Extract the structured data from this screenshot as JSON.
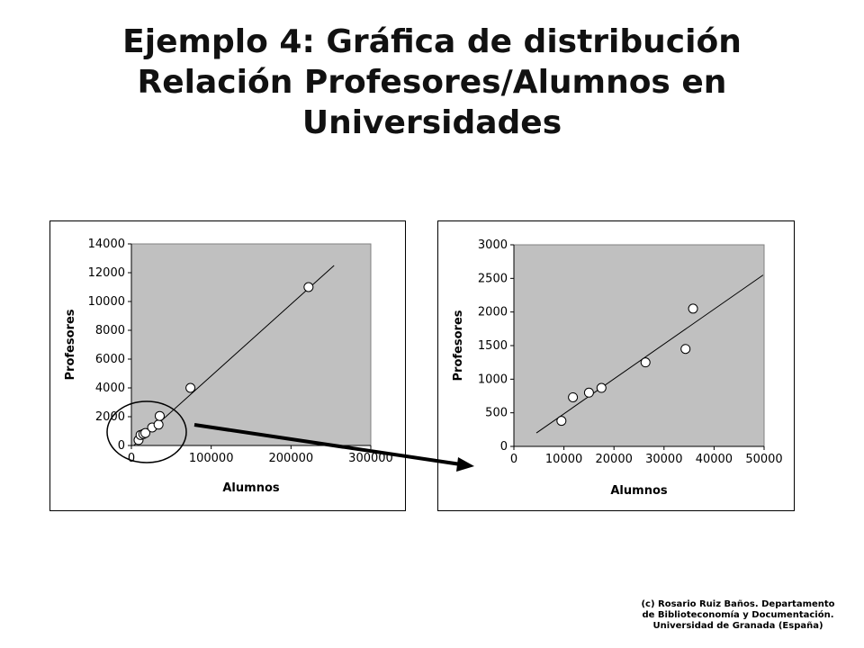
{
  "title_lines": [
    "Ejemplo 4: Gráfica de distribución",
    "Relación Profesores/Alumnos en",
    "Universidades"
  ],
  "credit_lines": [
    "(c) Rosario Ruiz Baños. Departamento",
    "de Biblioteconomía y Documentación.",
    "Universidad de Granada (España)"
  ],
  "colors": {
    "plot_area": "#c0c0c0",
    "points": "#ffffff",
    "lines": "#000000"
  },
  "chart_data": [
    {
      "type": "scatter",
      "xlabel": "Alumnos",
      "ylabel": "Profesores",
      "xlim": [
        0,
        300000
      ],
      "ylim": [
        0,
        14000
      ],
      "xticks": [
        0,
        100000,
        200000,
        300000
      ],
      "yticks": [
        0,
        2000,
        4000,
        6000,
        8000,
        10000,
        12000,
        14000
      ],
      "grid": false,
      "legend": "none",
      "points": [
        {
          "x": 9000,
          "y": 380
        },
        {
          "x": 11500,
          "y": 730
        },
        {
          "x": 15000,
          "y": 800
        },
        {
          "x": 17500,
          "y": 870
        },
        {
          "x": 26000,
          "y": 1250
        },
        {
          "x": 34000,
          "y": 1450
        },
        {
          "x": 35500,
          "y": 2050
        },
        {
          "x": 74000,
          "y": 4000
        },
        {
          "x": 222000,
          "y": 11000
        }
      ],
      "trendline": [
        {
          "x": 3000,
          "y": 0
        },
        {
          "x": 254000,
          "y": 12500
        }
      ]
    },
    {
      "type": "scatter",
      "xlabel": "Alumnos",
      "ylabel": "Profesores",
      "xlim": [
        0,
        50000
      ],
      "ylim": [
        0,
        3000
      ],
      "xticks": [
        0,
        10000,
        20000,
        30000,
        40000,
        50000
      ],
      "yticks": [
        0,
        500,
        1000,
        1500,
        2000,
        2500,
        3000
      ],
      "grid": false,
      "legend": "none",
      "points": [
        {
          "x": 9500,
          "y": 380
        },
        {
          "x": 11800,
          "y": 730
        },
        {
          "x": 15000,
          "y": 800
        },
        {
          "x": 17500,
          "y": 870
        },
        {
          "x": 26300,
          "y": 1250
        },
        {
          "x": 34300,
          "y": 1450
        },
        {
          "x": 35800,
          "y": 2050
        }
      ],
      "trendline": [
        {
          "x": 4500,
          "y": 200
        },
        {
          "x": 49800,
          "y": 2550
        }
      ]
    }
  ]
}
